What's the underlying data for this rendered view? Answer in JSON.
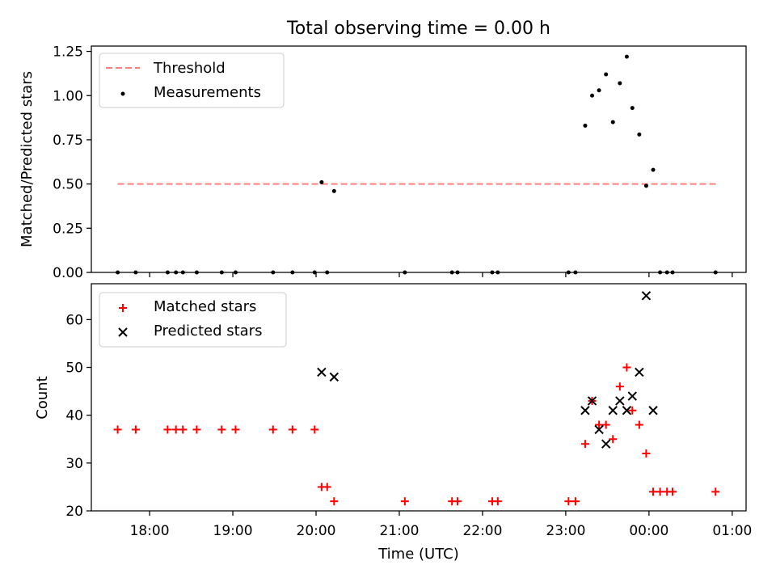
{
  "figure": {
    "title": "Total observing time = 0.00 h"
  },
  "chart_data": [
    {
      "type": "scatter",
      "title": "Total observing time = 0.00 h",
      "xlabel": "",
      "ylabel": "Matched/Predicted stars",
      "xlim": [
        "17:18",
        "01:10"
      ],
      "ylim": [
        0,
        1.28
      ],
      "yticks": [
        "0.00",
        "0.25",
        "0.50",
        "0.75",
        "1.00",
        "1.25"
      ],
      "ytick_values": [
        0,
        0.25,
        0.5,
        0.75,
        1.0,
        1.25
      ],
      "grid": false,
      "legend": "top-left",
      "series": [
        {
          "name": "Threshold",
          "kind": "dashed-line",
          "color": "#ff7f7f",
          "x": [
            "17:37",
            "00:49"
          ],
          "y": [
            0.5,
            0.5
          ]
        },
        {
          "name": "Measurements",
          "kind": "dot",
          "color": "#000000",
          "x": [
            "17:37",
            "17:50",
            "18:13",
            "18:19",
            "18:24",
            "18:34",
            "18:52",
            "19:02",
            "19:29",
            "19:43",
            "19:59",
            "20:04",
            "20:08",
            "20:13",
            "21:04",
            "21:38",
            "21:42",
            "22:07",
            "22:11",
            "23:02",
            "23:07",
            "23:14",
            "23:19",
            "23:24",
            "23:29",
            "23:34",
            "23:39",
            "23:44",
            "23:48",
            "23:53",
            "23:58",
            "00:03",
            "00:08",
            "00:13",
            "00:17",
            "00:48"
          ],
          "y": [
            0,
            0,
            0,
            0,
            0,
            0,
            0,
            0,
            0,
            0,
            0,
            0.51,
            0,
            0.46,
            0,
            0,
            0,
            0,
            0,
            0,
            0,
            0.83,
            1.0,
            1.03,
            1.12,
            0.85,
            1.07,
            1.22,
            0.93,
            0.78,
            0.49,
            0.58,
            0,
            0,
            0,
            0
          ]
        }
      ]
    },
    {
      "type": "scatter",
      "title": "",
      "xlabel": "Time (UTC)",
      "ylabel": "Count",
      "xlim": [
        "17:18",
        "01:10"
      ],
      "ylim": [
        20,
        67.5
      ],
      "yticks": [
        "20",
        "30",
        "40",
        "50",
        "60"
      ],
      "ytick_values": [
        20,
        30,
        40,
        50,
        60
      ],
      "xticks": [
        "18:00",
        "19:00",
        "20:00",
        "21:00",
        "22:00",
        "23:00",
        "00:00",
        "01:00"
      ],
      "grid": false,
      "legend": "top-left",
      "series": [
        {
          "name": "Matched stars",
          "marker": "plus",
          "color": "#ff0000",
          "x": [
            "17:37",
            "17:50",
            "18:13",
            "18:19",
            "18:24",
            "18:34",
            "18:52",
            "19:02",
            "19:29",
            "19:43",
            "19:59",
            "20:04",
            "20:08",
            "20:13",
            "21:04",
            "21:38",
            "21:42",
            "22:07",
            "22:11",
            "23:02",
            "23:07",
            "23:14",
            "23:19",
            "23:24",
            "23:29",
            "23:34",
            "23:39",
            "23:44",
            "23:48",
            "23:53",
            "23:58",
            "00:03",
            "00:08",
            "00:13",
            "00:17",
            "00:48"
          ],
          "y": [
            37,
            37,
            37,
            37,
            37,
            37,
            37,
            37,
            37,
            37,
            37,
            25,
            25,
            22,
            22,
            22,
            22,
            22,
            22,
            22,
            22,
            34,
            43,
            38,
            38,
            35,
            46,
            50,
            41,
            38,
            32,
            24,
            24,
            24,
            24,
            24
          ]
        },
        {
          "name": "Predicted stars",
          "marker": "x",
          "color": "#000000",
          "x": [
            "20:04",
            "20:13",
            "23:14",
            "23:19",
            "23:24",
            "23:29",
            "23:34",
            "23:39",
            "23:44",
            "23:48",
            "23:53",
            "23:58",
            "00:03"
          ],
          "y": [
            49,
            48,
            41,
            43,
            37,
            34,
            41,
            43,
            41,
            44,
            49,
            65,
            41
          ]
        }
      ]
    }
  ]
}
